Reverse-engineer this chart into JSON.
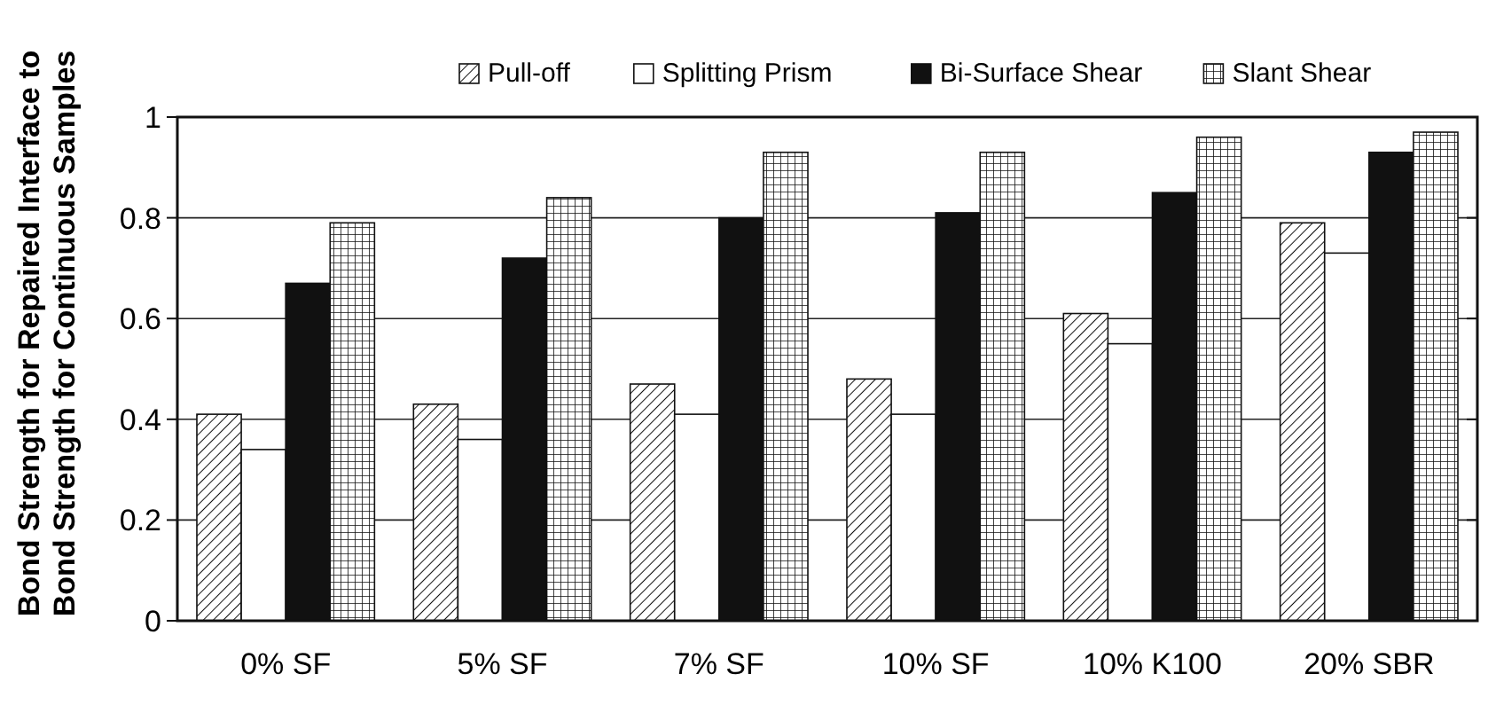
{
  "chart_data": {
    "type": "bar",
    "ylabel": "Bond Strength for Repaired Interface to\nBond Strength for Continuous Samples",
    "categories": [
      "0% SF",
      "5% SF",
      "7% SF",
      "10% SF",
      "10% K100",
      "20% SBR"
    ],
    "series": [
      {
        "name": "Pull-off",
        "color": "#111111",
        "values": [
          0.41,
          0.43,
          0.47,
          0.48,
          0.61,
          0.79
        ]
      },
      {
        "name": "Splitting Prism",
        "color": "#ffffff",
        "values": [
          0.34,
          0.36,
          0.41,
          0.41,
          0.55,
          0.73
        ]
      },
      {
        "name": "Bi-Surface Shear",
        "color": "#111111",
        "values": [
          0.67,
          0.72,
          0.8,
          0.81,
          0.85,
          0.93
        ]
      },
      {
        "name": "Slant Shear",
        "color": "#111111",
        "values": [
          0.79,
          0.84,
          0.93,
          0.93,
          0.96,
          0.97
        ]
      }
    ],
    "ylim": [
      0,
      1
    ],
    "yticks": [
      0,
      0.2,
      0.4,
      0.6,
      0.8,
      1
    ],
    "grid": "y",
    "legend": "top"
  }
}
